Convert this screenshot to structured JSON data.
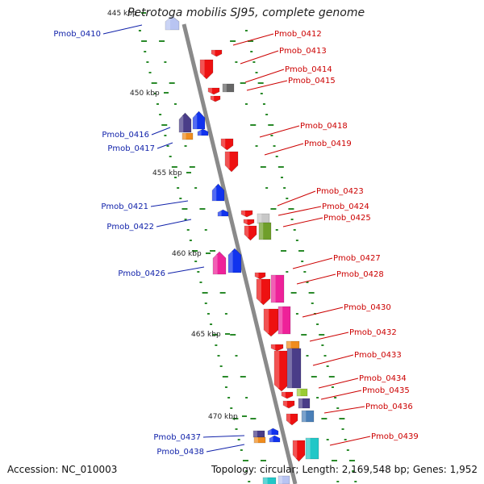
{
  "title": "Petrotoga mobilis SJ95, complete genome",
  "accession": "Accession: NC_010003",
  "summary": {
    "topology": "Topology: circular;",
    "length": "Length: 2,169,548 bp;",
    "genes": "Genes: 1,952"
  },
  "colors": {
    "red": "#ee1111",
    "blue": "#1133ee",
    "magenta": "#ee2299",
    "purple": "#4a3d88",
    "orange": "#f08c1e",
    "olive": "#6f9e2a",
    "lime": "#99cc33",
    "steel": "#4a7fb8",
    "cyan": "#22c7c7",
    "gray": "#666666",
    "tick": "#2a8a2a",
    "left_label": "#1122aa",
    "right_label": "#cc0000"
  },
  "scale_labels": [
    "445 kbp",
    "450 kbp",
    "455 kbp",
    "460 kbp",
    "465 kbp",
    "470 kbp"
  ],
  "left_gene_labels": [
    "Pmob_0410",
    "Pmob_0416",
    "Pmob_0417",
    "Pmob_0421",
    "Pmob_0422",
    "Pmob_0426",
    "Pmob_0437",
    "Pmob_0438"
  ],
  "right_gene_labels": [
    "Pmob_0412",
    "Pmob_0413",
    "Pmob_0414",
    "Pmob_0415",
    "Pmob_0418",
    "Pmob_0419",
    "Pmob_0423",
    "Pmob_0424",
    "Pmob_0425",
    "Pmob_0427",
    "Pmob_0428",
    "Pmob_0430",
    "Pmob_0432",
    "Pmob_0433",
    "Pmob_0434",
    "Pmob_0435",
    "Pmob_0436",
    "Pmob_0439"
  ]
}
